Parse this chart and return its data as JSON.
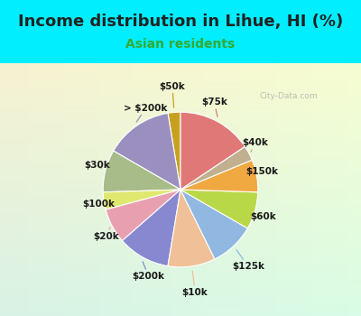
{
  "title": "Income distribution in Lihue, HI (%)",
  "subtitle": "Asian residents",
  "title_color": "#222222",
  "subtitle_color": "#33aa33",
  "bg_cyan": "#00eeff",
  "bg_inner": "#d8f0e8",
  "watermark": "City-Data.com",
  "labels": [
    "$50k",
    "> $200k",
    "$30k",
    "$100k",
    "$20k",
    "$200k",
    "$10k",
    "$125k",
    "$60k",
    "$150k",
    "$40k",
    "$75k"
  ],
  "sizes": [
    2.5,
    13.5,
    8.5,
    3.5,
    7.0,
    10.5,
    9.5,
    9.0,
    7.5,
    6.5,
    3.0,
    15.0
  ],
  "colors": [
    "#c8a020",
    "#9b8fc0",
    "#a8bc8a",
    "#e0e870",
    "#e8a0b0",
    "#8888d0",
    "#f0c098",
    "#90b8e0",
    "#b8d848",
    "#f0a840",
    "#c0b090",
    "#e07878"
  ],
  "startangle": 90,
  "label_fontsize": 7.5,
  "title_fontsize": 13,
  "subtitle_fontsize": 10
}
